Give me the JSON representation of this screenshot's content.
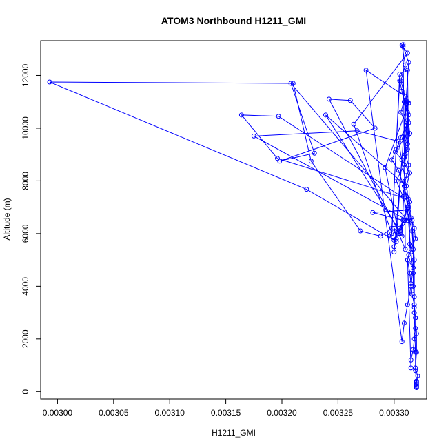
{
  "chart_data": {
    "type": "line",
    "title": "ATOM3 Northbound H1211_GMI",
    "xlabel": "H1211_GMI",
    "ylabel": "Altitude (m)",
    "xlim": [
      0.002985,
      0.003329
    ],
    "ylim": [
      -280,
      13320
    ],
    "x_ticks": [
      0.003,
      0.00305,
      0.0031,
      0.00315,
      0.0032,
      0.00325,
      0.0033
    ],
    "x_tick_labels": [
      "0.00300",
      "0.00305",
      "0.00310",
      "0.00315",
      "0.00320",
      "0.00325",
      "0.00330"
    ],
    "y_ticks": [
      0,
      2000,
      4000,
      6000,
      8000,
      10000,
      12000
    ],
    "y_tick_labels": [
      "0",
      "2000",
      "4000",
      "6000",
      "8000",
      "10000",
      "12000"
    ],
    "grid": false,
    "legend": "none",
    "color": "#0000ff",
    "series": [
      {
        "x": [
          0.00332,
          0.00332,
          0.00332,
          0.003321,
          0.003319,
          0.00332,
          0.00332,
          0.003319,
          0.003318,
          0.003316,
          0.003315,
          0.003314,
          0.003312,
          0.003316,
          0.003319,
          0.003318,
          0.003315,
          0.003313,
          0.003311,
          0.003309,
          0.003311,
          0.003313,
          0.00331,
          0.003312,
          0.003314,
          0.003313,
          0.003312,
          0.003309,
          0.003307,
          0.003305,
          0.003298,
          0.003288,
          0.00327,
          0.003226,
          0.00321,
          0.002993,
          0.003222,
          0.0033,
          0.003309,
          0.003312,
          0.00331,
          0.003307,
          0.003304,
          0.003298,
          0.003302,
          0.003306,
          0.003311,
          0.003313,
          0.003311,
          0.0033,
          0.0033,
          0.003302,
          0.003296,
          0.003305,
          0.003308,
          0.003281,
          0.003312,
          0.003315,
          0.003316,
          0.003317,
          0.003317,
          0.003318,
          0.003318,
          0.003319,
          0.003319,
          0.003318,
          0.003317,
          0.003315,
          0.003315,
          0.003312,
          0.003313,
          0.003314,
          0.003312,
          0.003305,
          0.003298,
          0.003264,
          0.003312,
          0.003307,
          0.00331,
          0.003306,
          0.003311,
          0.003313,
          0.003292,
          0.003304,
          0.00331,
          0.003308,
          0.003308,
          0.003313,
          0.003302,
          0.0033,
          0.003307,
          0.003312,
          0.003312,
          0.003312,
          0.003312,
          0.003309,
          0.003302,
          0.003308,
          0.003312,
          0.003316,
          0.003317,
          0.003317,
          0.003315,
          0.003312,
          0.003309,
          0.003307,
          0.003275,
          0.00331,
          0.003306,
          0.003311,
          0.003309,
          0.003301,
          0.003307,
          0.003314,
          0.003311,
          0.003239,
          0.003305,
          0.003313,
          0.003314,
          0.003197,
          0.003164,
          0.003196,
          0.003313,
          0.003305,
          0.003242,
          0.003261,
          0.003283,
          0.003198,
          0.003229,
          0.003208,
          0.003312,
          0.003175,
          0.003267,
          0.003304,
          0.003316,
          0.003318,
          0.003318,
          0.003319,
          0.003319,
          0.00332,
          0.00332,
          0.00332
        ],
        "y": [
          150,
          250,
          350,
          600,
          900,
          1500,
          2200,
          2800,
          3300,
          3700,
          4100,
          4500,
          5000,
          5500,
          5800,
          6200,
          6600,
          7000,
          7400,
          7800,
          8200,
          8600,
          9000,
          9400,
          9800,
          10200,
          10600,
          11000,
          11400,
          11800,
          6200,
          5900,
          6100,
          8750,
          11700,
          11750,
          7680,
          5750,
          6500,
          7000,
          7600,
          8000,
          8400,
          8800,
          9200,
          9650,
          10100,
          10500,
          10900,
          5300,
          5500,
          5700,
          5900,
          6200,
          6500,
          6800,
          6900,
          5300,
          4900,
          4500,
          4000,
          3600,
          3200,
          2800,
          2400,
          2000,
          1600,
          1200,
          900,
          5000,
          5200,
          5600,
          12200,
          12050,
          6000,
          10150,
          12850,
          13150,
          12400,
          11800,
          11000,
          10950,
          8500,
          6000,
          5400,
          13170,
          13100,
          12500,
          5800,
          6200,
          5900,
          11000,
          10300,
          9700,
          9200,
          8600,
          8000,
          7400,
          6800,
          6100,
          5400,
          4700,
          4000,
          3300,
          2600,
          1900,
          12200,
          11200,
          10600,
          10100,
          9600,
          9100,
          8800,
          8300,
          7800,
          10500,
          6100,
          6600,
          7200,
          10450,
          10500,
          8850,
          7300,
          6000,
          11100,
          11050,
          10000,
          8750,
          9050,
          11700,
          6500,
          9700,
          9900,
          9500,
          6500,
          5000,
          3000,
          1500,
          800,
          400,
          300,
          200
        ]
      }
    ]
  }
}
